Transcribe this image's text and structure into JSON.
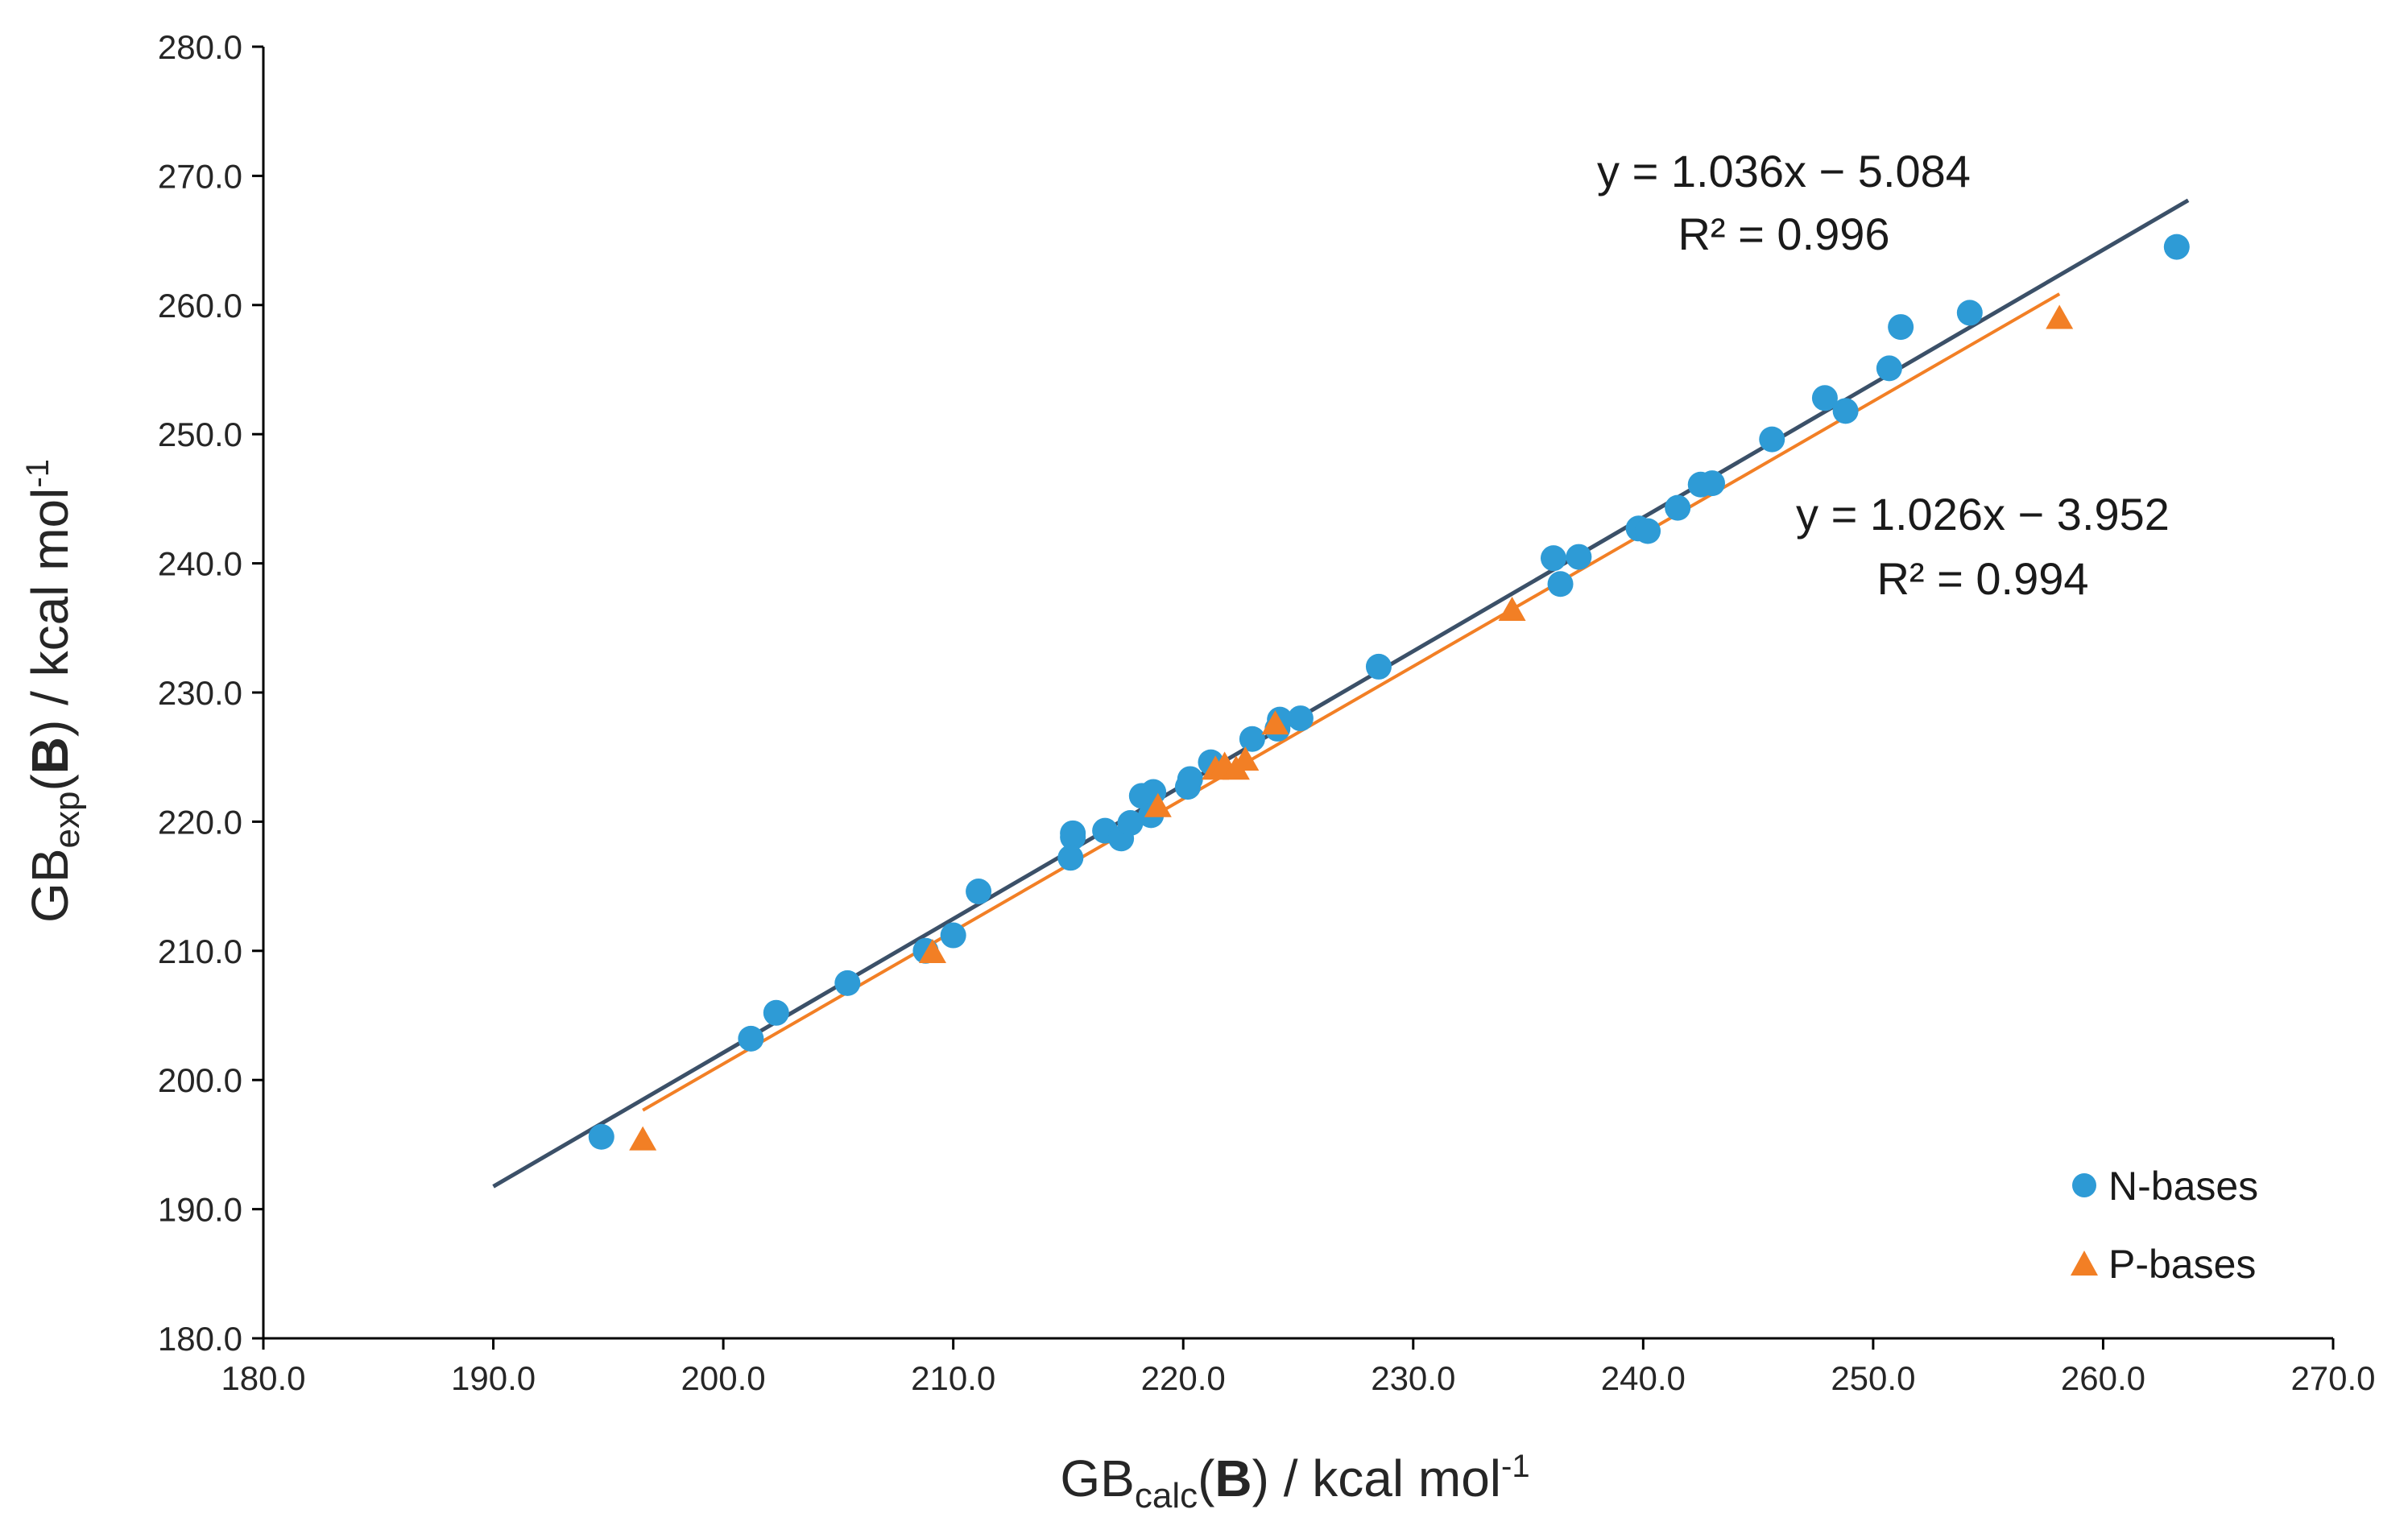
{
  "chart_data": {
    "type": "scatter",
    "xlabel": {
      "main": "GB",
      "sub": "calc",
      "paren_open": "(",
      "bold": "B",
      "paren_close": ")",
      "unit": " / kcal mol",
      "sup": "-1"
    },
    "ylabel": {
      "main": "GB",
      "sub": "exp",
      "paren_open": "(",
      "bold": "B",
      "paren_close": ")",
      "unit": " / kcal mol",
      "sup": "-1"
    },
    "xlim": [
      180,
      270
    ],
    "ylim": [
      180,
      280
    ],
    "xticks": [
      180,
      190,
      200,
      210,
      220,
      230,
      240,
      250,
      260,
      270
    ],
    "yticks": [
      180,
      190,
      200,
      210,
      220,
      230,
      240,
      250,
      260,
      270,
      280
    ],
    "xtick_labels": [
      "180.0",
      "190.0",
      "200.0",
      "210.0",
      "220.0",
      "230.0",
      "240.0",
      "250.0",
      "260.0",
      "270.0"
    ],
    "ytick_labels": [
      "180.0",
      "190.0",
      "200.0",
      "210.0",
      "220.0",
      "230.0",
      "240.0",
      "250.0",
      "260.0",
      "270.0",
      "280.0"
    ],
    "legend_position": "bottom-right",
    "series": [
      {
        "name": "N-bases",
        "marker": "circle",
        "color": "#2e9bd6",
        "points": [
          [
            194.7,
            195.6
          ],
          [
            201.2,
            203.2
          ],
          [
            202.3,
            205.2
          ],
          [
            205.4,
            207.5
          ],
          [
            208.8,
            210.0
          ],
          [
            210.0,
            211.2
          ],
          [
            211.1,
            214.6
          ],
          [
            215.1,
            217.2
          ],
          [
            215.2,
            218.8
          ],
          [
            215.2,
            219.1
          ],
          [
            216.6,
            219.3
          ],
          [
            217.3,
            218.7
          ],
          [
            217.7,
            219.9
          ],
          [
            218.2,
            222.0
          ],
          [
            218.6,
            220.5
          ],
          [
            218.7,
            222.3
          ],
          [
            220.2,
            222.7
          ],
          [
            220.3,
            223.3
          ],
          [
            221.2,
            224.6
          ],
          [
            223.0,
            226.4
          ],
          [
            224.1,
            227.2
          ],
          [
            224.2,
            227.9
          ],
          [
            225.1,
            228.0
          ],
          [
            228.5,
            232.0
          ],
          [
            236.1,
            240.4
          ],
          [
            236.4,
            238.4
          ],
          [
            237.2,
            240.5
          ],
          [
            239.8,
            242.7
          ],
          [
            240.2,
            242.5
          ],
          [
            241.5,
            244.3
          ],
          [
            242.5,
            246.1
          ],
          [
            243.0,
            246.2
          ],
          [
            245.6,
            249.6
          ],
          [
            247.9,
            252.8
          ],
          [
            248.8,
            251.8
          ],
          [
            250.7,
            255.1
          ],
          [
            251.2,
            258.3
          ],
          [
            254.2,
            259.4
          ],
          [
            263.2,
            264.5
          ]
        ]
      },
      {
        "name": "P-bases",
        "marker": "triangle",
        "color": "#f27f25",
        "points": [
          [
            196.5,
            195.3
          ],
          [
            209.1,
            209.8
          ],
          [
            218.9,
            221.1
          ],
          [
            221.4,
            224.0
          ],
          [
            221.8,
            224.3
          ],
          [
            222.3,
            224.0
          ],
          [
            222.7,
            224.7
          ],
          [
            224.0,
            227.5
          ],
          [
            234.3,
            236.3
          ],
          [
            258.1,
            258.9
          ]
        ]
      }
    ],
    "trendlines": [
      {
        "series": "N-bases",
        "slope": 1.036,
        "intercept": -5.084,
        "x_range": [
          190,
          263.7
        ],
        "color": "#3b5068",
        "equation": "y = 1.036x − 5.084",
        "r2": "R² = 0.996"
      },
      {
        "series": "P-bases",
        "slope": 1.026,
        "intercept": -3.952,
        "x_range": [
          196.5,
          258.1
        ],
        "color": "#f27f25",
        "equation": "y = 1.026x − 3.952",
        "r2": "R² = 0.994"
      }
    ]
  }
}
